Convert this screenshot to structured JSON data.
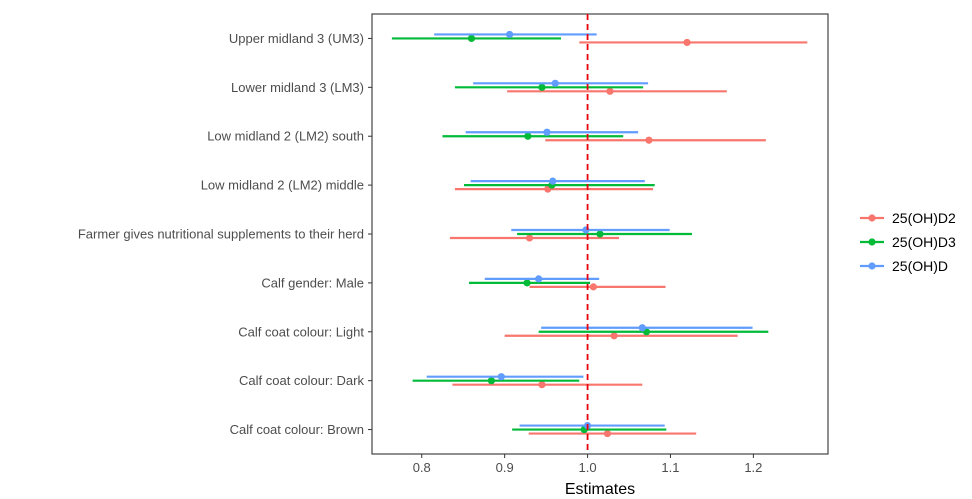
{
  "chart_data": {
    "type": "forest",
    "xlabel": "Estimates",
    "ylabel": "",
    "title": "",
    "xlim": [
      0.74,
      1.29
    ],
    "x_ticks": [
      0.8,
      0.9,
      1.0,
      1.1,
      1.2
    ],
    "x_tick_labels": [
      "0.8",
      "0.9",
      "1.0",
      "1.1",
      "1.2"
    ],
    "reference_line": {
      "x": 1.0,
      "style": "dashed",
      "color": "#e8000b"
    },
    "grid": false,
    "legend_position": "right",
    "categories": [
      "Upper midland 3 (UM3)",
      "Lower midland 3 (LM3)",
      "Low midland 2 (LM2) south",
      "Low midland 2 (LM2) middle",
      "Farmer gives nutritional supplements to their herd",
      "Calf gender: Male",
      "Calf coat colour: Light",
      "Calf coat colour: Dark",
      "Calf coat colour: Brown"
    ],
    "series": [
      {
        "name": "25(OH)D2",
        "color": "#F8766D",
        "estimates": [
          1.12,
          1.027,
          1.074,
          0.952,
          0.93,
          1.007,
          1.032,
          0.945,
          1.024
        ],
        "lower": [
          0.99,
          0.903,
          0.949,
          0.84,
          0.834,
          0.93,
          0.9,
          0.837,
          0.929
        ],
        "upper": [
          1.265,
          1.168,
          1.215,
          1.079,
          1.038,
          1.094,
          1.181,
          1.066,
          1.131
        ]
      },
      {
        "name": "25(OH)D3",
        "color": "#00BA38",
        "estimates": [
          0.86,
          0.945,
          0.928,
          0.957,
          1.015,
          0.927,
          1.071,
          0.884,
          0.996
        ],
        "lower": [
          0.764,
          0.84,
          0.825,
          0.851,
          0.915,
          0.857,
          0.941,
          0.789,
          0.909
        ],
        "upper": [
          0.968,
          1.067,
          1.043,
          1.081,
          1.126,
          1.003,
          1.218,
          0.99,
          1.095
        ]
      },
      {
        "name": "25(OH)D",
        "color": "#619CFF",
        "estimates": [
          0.906,
          0.961,
          0.951,
          0.958,
          0.998,
          0.941,
          1.066,
          0.896,
          1.0
        ],
        "lower": [
          0.815,
          0.862,
          0.853,
          0.859,
          0.908,
          0.876,
          0.944,
          0.806,
          0.918
        ],
        "upper": [
          1.011,
          1.073,
          1.061,
          1.069,
          1.099,
          1.014,
          1.199,
          0.995,
          1.093
        ]
      }
    ]
  }
}
